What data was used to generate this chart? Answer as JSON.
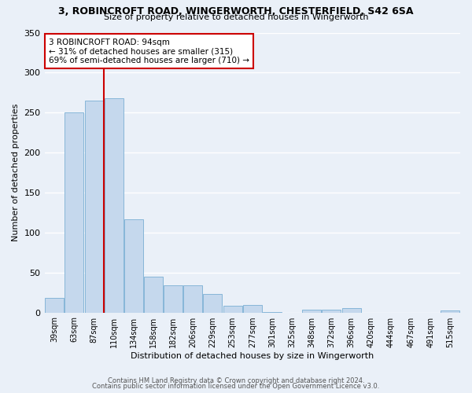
{
  "title": "3, ROBINCROFT ROAD, WINGERWORTH, CHESTERFIELD, S42 6SA",
  "subtitle": "Size of property relative to detached houses in Wingerworth",
  "xlabel": "Distribution of detached houses by size in Wingerworth",
  "ylabel": "Number of detached properties",
  "bar_labels": [
    "39sqm",
    "63sqm",
    "87sqm",
    "110sqm",
    "134sqm",
    "158sqm",
    "182sqm",
    "206sqm",
    "229sqm",
    "253sqm",
    "277sqm",
    "301sqm",
    "325sqm",
    "348sqm",
    "372sqm",
    "396sqm",
    "420sqm",
    "444sqm",
    "467sqm",
    "491sqm",
    "515sqm"
  ],
  "bar_values": [
    18,
    250,
    265,
    268,
    117,
    45,
    34,
    34,
    23,
    8,
    9,
    1,
    0,
    4,
    4,
    5,
    0,
    0,
    0,
    0,
    3
  ],
  "bar_color": "#c5d8ed",
  "bar_edge_color": "#7aafd4",
  "background_color": "#eaf0f8",
  "grid_color": "#ffffff",
  "vline_color": "#cc0000",
  "annotation_text": "3 ROBINCROFT ROAD: 94sqm\n← 31% of detached houses are smaller (315)\n69% of semi-detached houses are larger (710) →",
  "annotation_box_color": "#ffffff",
  "annotation_box_edge": "#cc0000",
  "ylim": [
    0,
    350
  ],
  "yticks": [
    0,
    50,
    100,
    150,
    200,
    250,
    300,
    350
  ],
  "footer_line1": "Contains HM Land Registry data © Crown copyright and database right 2024.",
  "footer_line2": "Contains public sector information licensed under the Open Government Licence v3.0."
}
